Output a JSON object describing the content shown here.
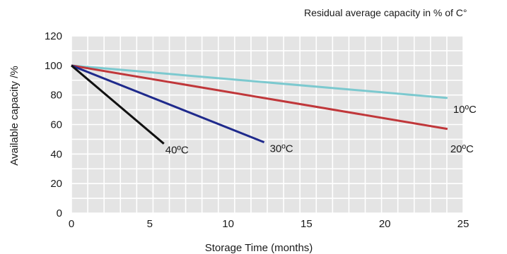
{
  "chart_data": {
    "type": "line",
    "title": "Residual average capacity in % of C°",
    "xlabel": "Storage Time (months)",
    "ylabel": "Available capacity /%",
    "xlim": [
      0,
      25
    ],
    "ylim": [
      0,
      120
    ],
    "xticks": [
      0,
      5,
      10,
      15,
      20,
      25
    ],
    "yticks": [
      0,
      20,
      40,
      60,
      80,
      100,
      120
    ],
    "xtick_labels": [
      "0",
      "5",
      "10",
      "15",
      "20",
      "25"
    ],
    "ytick_labels": [
      "0",
      "20",
      "40",
      "60",
      "80",
      "100",
      "120"
    ],
    "grid": true,
    "background": "#e4e4e4",
    "series": [
      {
        "name": "10ºC",
        "color": "#7cc9cf",
        "x": [
          0,
          24
        ],
        "y": [
          100,
          78
        ]
      },
      {
        "name": "20ºC",
        "color": "#c0373a",
        "x": [
          0,
          24
        ],
        "y": [
          100,
          57
        ]
      },
      {
        "name": "30ºC",
        "color": "#1f2a8c",
        "x": [
          0,
          12.3
        ],
        "y": [
          100,
          48
        ]
      },
      {
        "name": "40ºC",
        "color": "#111111",
        "x": [
          0,
          5.9
        ],
        "y": [
          100,
          47
        ]
      }
    ]
  }
}
